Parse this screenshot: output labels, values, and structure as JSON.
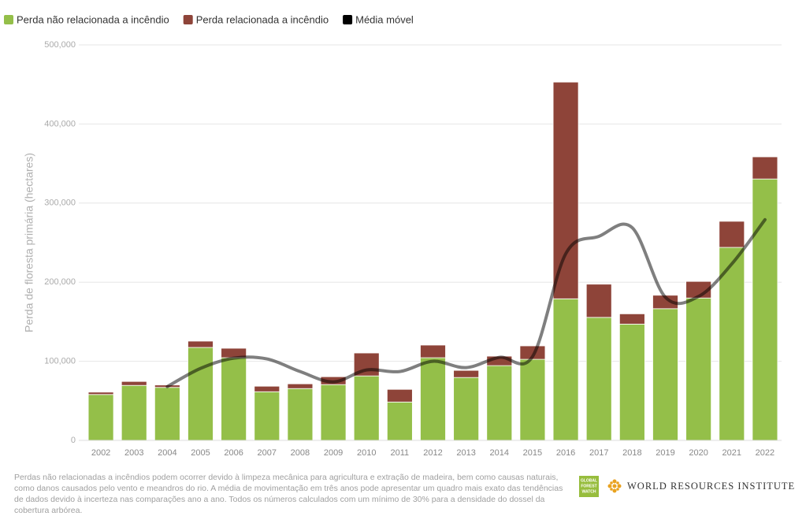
{
  "chart_data": {
    "type": "bar",
    "stacked": true,
    "y_label": "Perda de floresta primária (hectares)",
    "categories": [
      "2002",
      "2003",
      "2004",
      "2005",
      "2006",
      "2007",
      "2008",
      "2009",
      "2010",
      "2011",
      "2012",
      "2013",
      "2014",
      "2015",
      "2016",
      "2017",
      "2018",
      "2019",
      "2020",
      "2021",
      "2022"
    ],
    "series": [
      {
        "name": "Perda não relacionada a incêndio",
        "color": "#94bf49",
        "values": [
          58000,
          69500,
          67000,
          117500,
          104500,
          61500,
          65500,
          70500,
          81500,
          48500,
          104500,
          79500,
          94500,
          102500,
          179000,
          155500,
          147000,
          166500,
          180000,
          244000,
          330500
        ]
      },
      {
        "name": "Perda relacionada a incêndio",
        "color": "#8e4439",
        "values": [
          3000,
          5000,
          3000,
          8000,
          12000,
          7000,
          6000,
          10000,
          29000,
          16000,
          16000,
          9000,
          12000,
          17000,
          274000,
          42000,
          13000,
          17000,
          21000,
          33000,
          28000
        ]
      },
      {
        "name": "Média móvel",
        "type": "line",
        "color": "#000000",
        "values": [
          null,
          null,
          68000,
          91000,
          104000,
          103000,
          87000,
          74000,
          89000,
          87000,
          100000,
          92000,
          105000,
          106000,
          236000,
          258000,
          269000,
          181000,
          182000,
          223000,
          279000
        ]
      }
    ],
    "ylim": [
      0,
      500000
    ],
    "yticks": [
      0,
      {
        "value": 100000,
        "label": "100,000"
      },
      {
        "value": 200000,
        "label": "200,000"
      },
      {
        "value": 300000,
        "label": "300,000"
      },
      {
        "value": 400000,
        "label": "400,000"
      },
      {
        "value": 500000,
        "label": "500,000"
      }
    ],
    "grid": true
  },
  "footer": {
    "note": "Perdas não relacionadas a incêndios podem ocorrer devido à limpeza mecânica para agricultura e extração de madeira, bem como causas naturais, como danos causados pelo vento e meandros do rio. A média de movimentação em três anos pode apresentar um quadro mais exato das tendências de dados devido à incerteza nas comparações ano a ano. Todos os números calculados com um mínimo de 30% para a densidade do dossel da cobertura arbórea.",
    "gfw_logo": [
      "GLOBAL",
      "FOREST",
      "WATCH"
    ],
    "wri_logo": "WORLD RESOURCES INSTITUTE"
  }
}
